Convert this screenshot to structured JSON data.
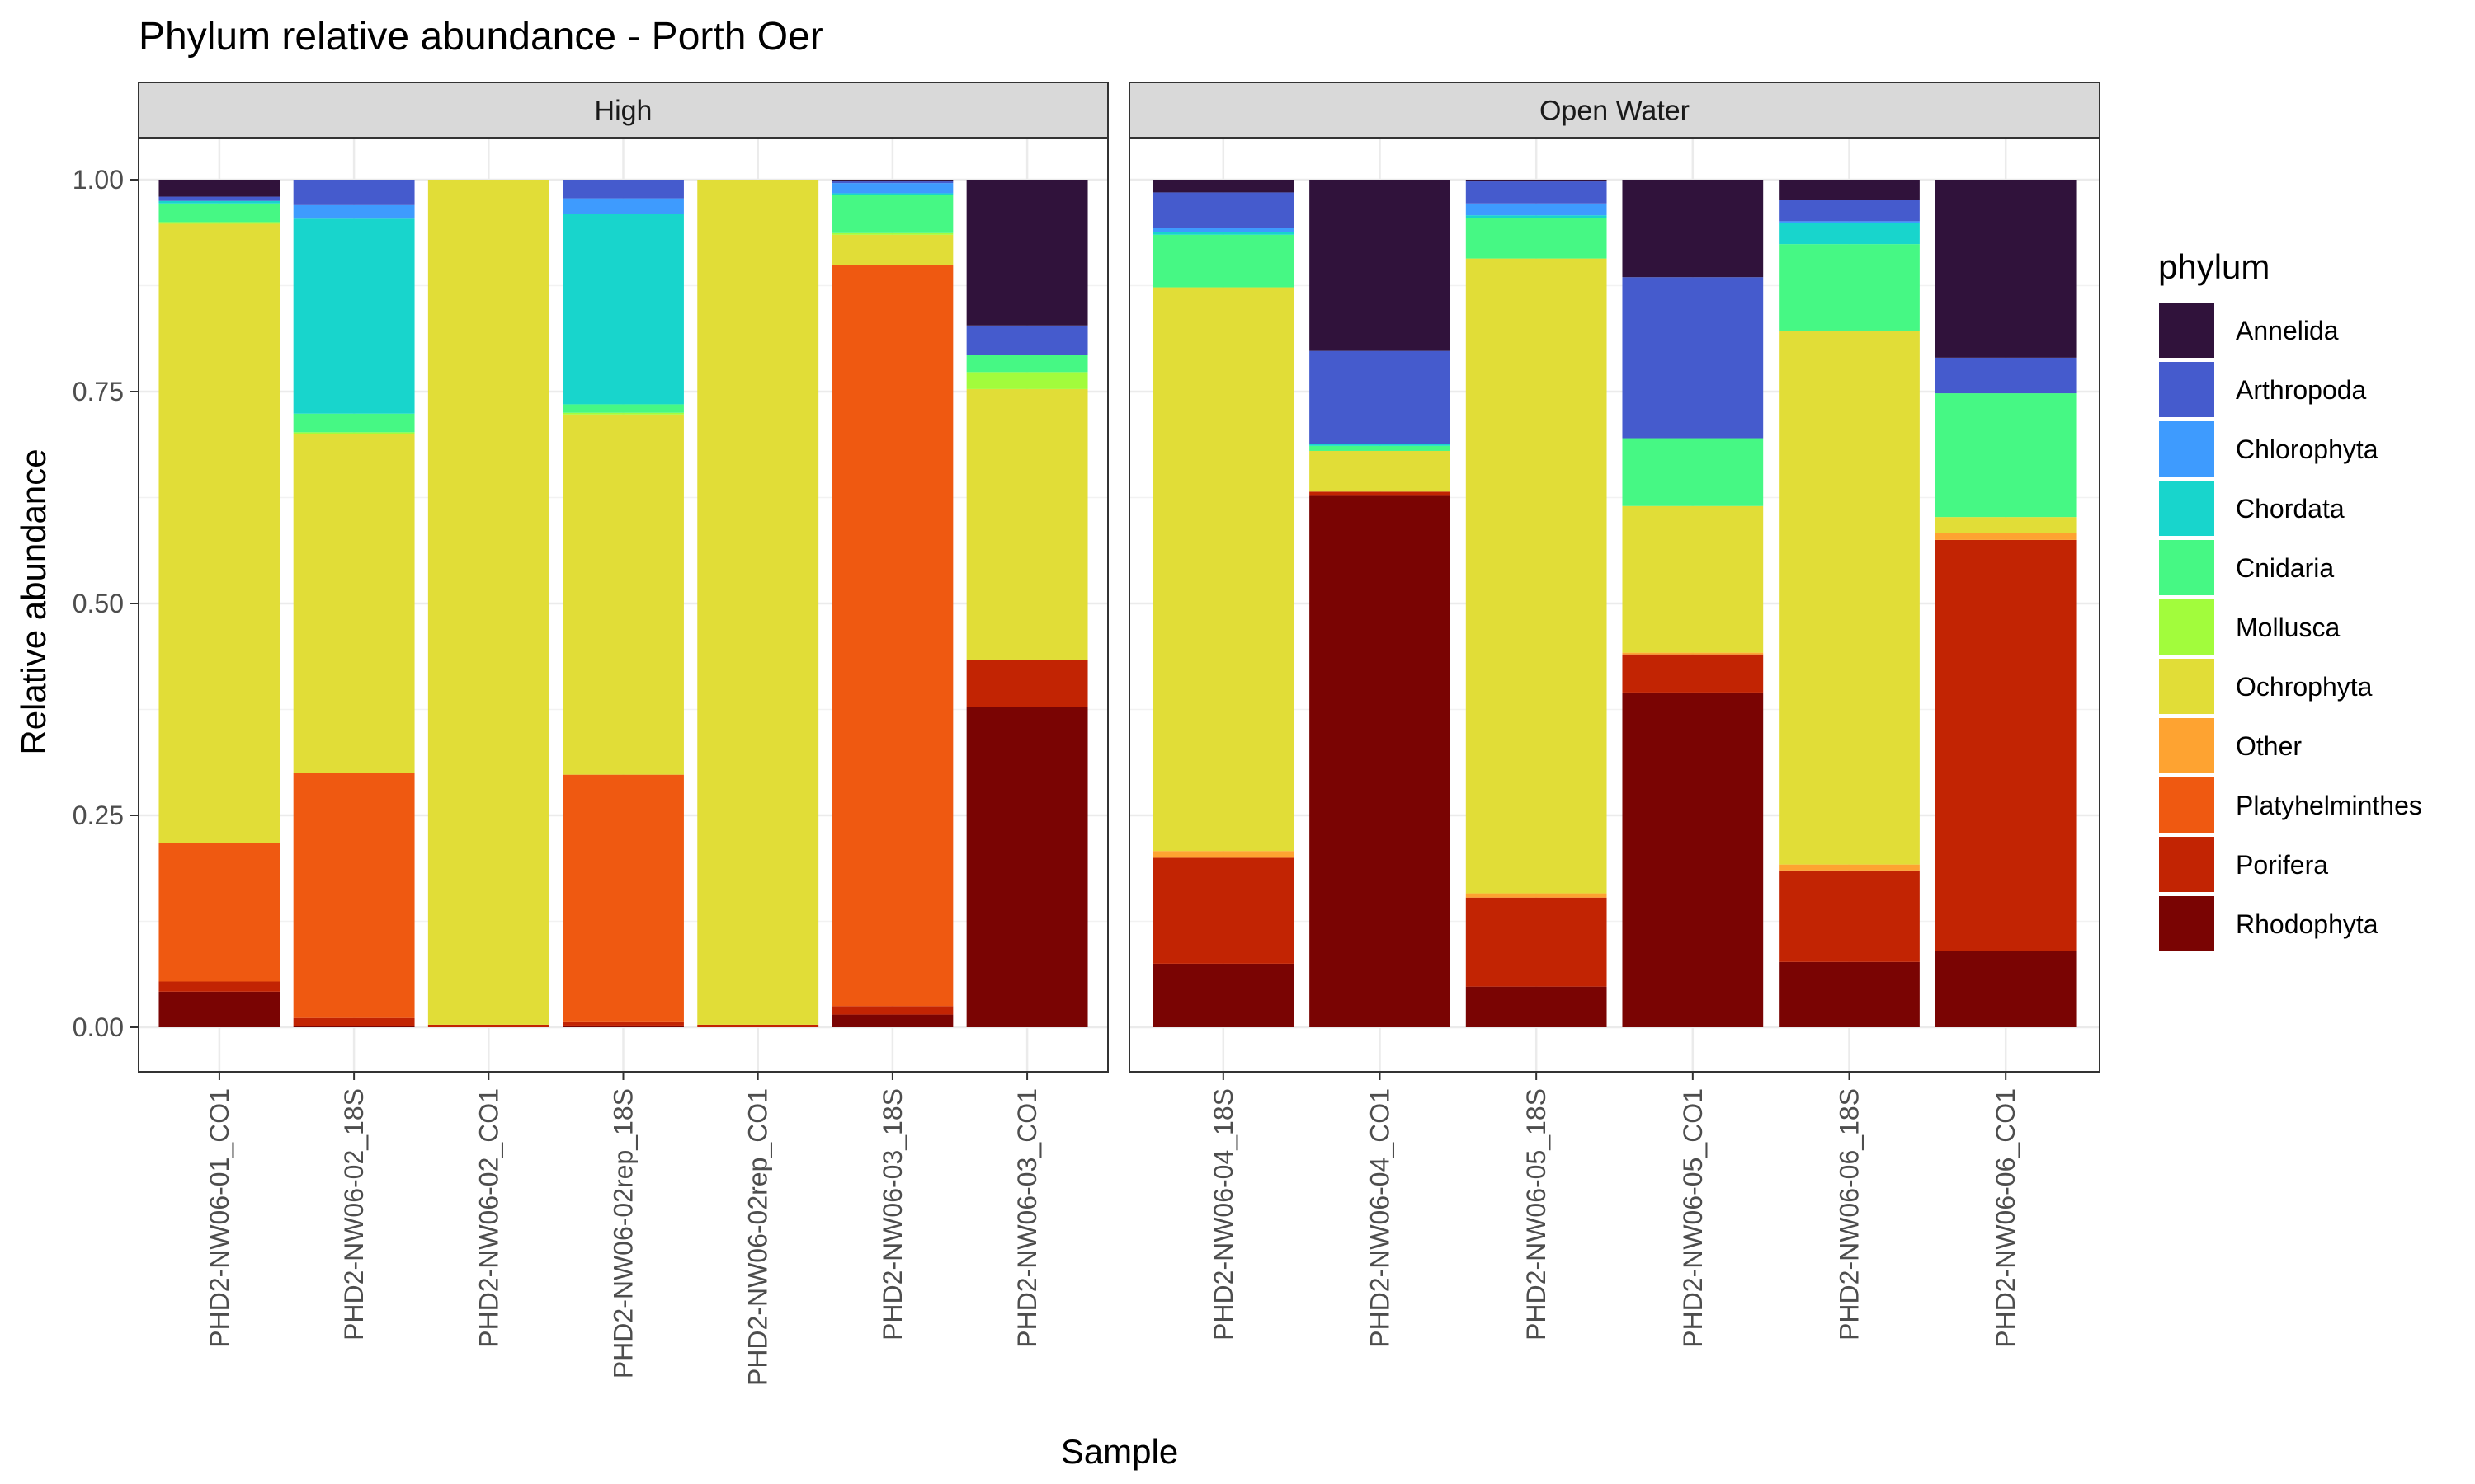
{
  "chart_data": {
    "type": "bar",
    "stacked": true,
    "title": "Phylum relative abundance - Porth Oer",
    "xlabel": "Sample",
    "ylabel": "Relative abundance",
    "ylim": [
      0,
      1
    ],
    "yticks": [
      "0.00",
      "0.25",
      "0.50",
      "0.75",
      "1.00"
    ],
    "grid": true,
    "legend_title": "phylum",
    "legend_position": "right",
    "phyla": [
      "Annelida",
      "Arthropoda",
      "Chlorophyta",
      "Chordata",
      "Cnidaria",
      "Mollusca",
      "Ochrophyta",
      "Other",
      "Platyhelminthes",
      "Porifera",
      "Rhodophyta"
    ],
    "colors": {
      "Annelida": "#30123b",
      "Arthropoda": "#455bcd",
      "Chlorophyta": "#3e9bfe",
      "Chordata": "#18d5cc",
      "Cnidaria": "#46f884",
      "Mollusca": "#a2fc3c",
      "Ochrophyta": "#e1dd37",
      "Other": "#fea331",
      "Platyhelminthes": "#ef5911",
      "Porifera": "#c22403",
      "Rhodophyta": "#7a0403"
    },
    "facets": [
      {
        "name": "High",
        "samples": [
          {
            "sample": "PHD2-NW06-01_CO1",
            "values": {
              "Rhodophyta": 0.042,
              "Porifera": 0.012,
              "Other": 0.0,
              "Platyhelminthes": 0.163,
              "Ochrophyta": 0.731,
              "Mollusca": 0.002,
              "Cnidaria": 0.022,
              "Chordata": 0.003,
              "Chlorophyta": 0.0,
              "Arthropoda": 0.005,
              "Annelida": 0.02
            }
          },
          {
            "sample": "PHD2-NW06-02_18S",
            "values": {
              "Rhodophyta": 0.001,
              "Porifera": 0.01,
              "Other": 0.0,
              "Platyhelminthes": 0.289,
              "Ochrophyta": 0.4,
              "Mollusca": 0.002,
              "Cnidaria": 0.022,
              "Chordata": 0.23,
              "Chlorophyta": 0.016,
              "Arthropoda": 0.03,
              "Annelida": 0.0
            }
          },
          {
            "sample": "PHD2-NW06-02_CO1",
            "values": {
              "Rhodophyta": 0.0,
              "Porifera": 0.003,
              "Other": 0.0,
              "Platyhelminthes": 0.0,
              "Ochrophyta": 0.997,
              "Mollusca": 0.0,
              "Cnidaria": 0.0,
              "Chordata": 0.0,
              "Chlorophyta": 0.0,
              "Arthropoda": 0.0,
              "Annelida": 0.0
            }
          },
          {
            "sample": "PHD2-NW06-02rep_18S",
            "values": {
              "Rhodophyta": 0.002,
              "Porifera": 0.004,
              "Other": 0.0,
              "Platyhelminthes": 0.292,
              "Ochrophyta": 0.425,
              "Mollusca": 0.002,
              "Cnidaria": 0.01,
              "Chordata": 0.225,
              "Chlorophyta": 0.018,
              "Arthropoda": 0.022,
              "Annelida": 0.0
            }
          },
          {
            "sample": "PHD2-NW06-02rep_CO1",
            "values": {
              "Rhodophyta": 0.0,
              "Porifera": 0.003,
              "Other": 0.0,
              "Platyhelminthes": 0.0,
              "Ochrophyta": 0.997,
              "Mollusca": 0.0,
              "Cnidaria": 0.0,
              "Chordata": 0.0,
              "Chlorophyta": 0.0,
              "Arthropoda": 0.0,
              "Annelida": 0.0
            }
          },
          {
            "sample": "PHD2-NW06-03_18S",
            "values": {
              "Rhodophyta": 0.015,
              "Porifera": 0.01,
              "Other": 0.0,
              "Platyhelminthes": 0.874,
              "Ochrophyta": 0.036,
              "Mollusca": 0.002,
              "Cnidaria": 0.045,
              "Chordata": 0.002,
              "Chlorophyta": 0.012,
              "Arthropoda": 0.002,
              "Annelida": 0.002
            }
          },
          {
            "sample": "PHD2-NW06-03_CO1",
            "values": {
              "Rhodophyta": 0.378,
              "Porifera": 0.055,
              "Other": 0.0,
              "Platyhelminthes": 0.0,
              "Ochrophyta": 0.32,
              "Mollusca": 0.02,
              "Cnidaria": 0.02,
              "Chordata": 0.0,
              "Chlorophyta": 0.0,
              "Arthropoda": 0.035,
              "Annelida": 0.172
            }
          }
        ]
      },
      {
        "name": "Open Water",
        "samples": [
          {
            "sample": "PHD2-NW06-04_18S",
            "values": {
              "Rhodophyta": 0.075,
              "Porifera": 0.125,
              "Other": 0.008,
              "Platyhelminthes": 0.0,
              "Ochrophyta": 0.665,
              "Mollusca": 0.0,
              "Cnidaria": 0.062,
              "Chordata": 0.003,
              "Chlorophyta": 0.005,
              "Arthropoda": 0.042,
              "Annelida": 0.015
            }
          },
          {
            "sample": "PHD2-NW06-04_CO1",
            "values": {
              "Rhodophyta": 0.627,
              "Porifera": 0.005,
              "Other": 0.0,
              "Platyhelminthes": 0.0,
              "Ochrophyta": 0.048,
              "Mollusca": 0.0,
              "Cnidaria": 0.006,
              "Chordata": 0.002,
              "Chlorophyta": 0.0,
              "Arthropoda": 0.11,
              "Annelida": 0.202
            }
          },
          {
            "sample": "PHD2-NW06-05_18S",
            "values": {
              "Rhodophyta": 0.048,
              "Porifera": 0.105,
              "Other": 0.005,
              "Platyhelminthes": 0.0,
              "Ochrophyta": 0.749,
              "Mollusca": 0.0,
              "Cnidaria": 0.048,
              "Chordata": 0.003,
              "Chlorophyta": 0.014,
              "Arthropoda": 0.026,
              "Annelida": 0.002
            }
          },
          {
            "sample": "PHD2-NW06-05_CO1",
            "values": {
              "Rhodophyta": 0.395,
              "Porifera": 0.045,
              "Other": 0.002,
              "Platyhelminthes": 0.0,
              "Ochrophyta": 0.173,
              "Mollusca": 0.0,
              "Cnidaria": 0.08,
              "Chordata": 0.0,
              "Chlorophyta": 0.0,
              "Arthropoda": 0.19,
              "Annelida": 0.115
            }
          },
          {
            "sample": "PHD2-NW06-06_18S",
            "values": {
              "Rhodophyta": 0.077,
              "Porifera": 0.108,
              "Other": 0.007,
              "Platyhelminthes": 0.0,
              "Ochrophyta": 0.63,
              "Mollusca": 0.0,
              "Cnidaria": 0.102,
              "Chordata": 0.025,
              "Chlorophyta": 0.002,
              "Arthropoda": 0.025,
              "Annelida": 0.024
            }
          },
          {
            "sample": "PHD2-NW06-06_CO1",
            "values": {
              "Rhodophyta": 0.09,
              "Porifera": 0.485,
              "Other": 0.008,
              "Platyhelminthes": 0.0,
              "Ochrophyta": 0.019,
              "Mollusca": 0.0,
              "Cnidaria": 0.146,
              "Chordata": 0.0,
              "Chlorophyta": 0.0,
              "Arthropoda": 0.042,
              "Annelida": 0.21
            }
          }
        ]
      }
    ]
  }
}
